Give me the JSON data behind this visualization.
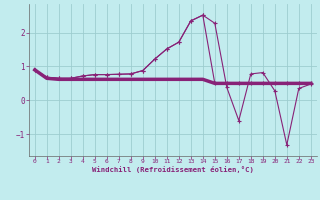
{
  "xlabel": "Windchill (Refroidissement éolien,°C)",
  "background_color": "#c2ecee",
  "grid_color": "#9dcdd0",
  "line_color": "#882277",
  "x": [
    0,
    1,
    2,
    3,
    4,
    5,
    6,
    7,
    8,
    9,
    10,
    11,
    12,
    13,
    14,
    15,
    16,
    17,
    18,
    19,
    20,
    21,
    22,
    23
  ],
  "line1": [
    0.9,
    0.68,
    0.65,
    0.65,
    0.72,
    0.76,
    0.76,
    0.77,
    0.78,
    0.88,
    1.22,
    1.52,
    1.72,
    2.35,
    2.52,
    2.28,
    0.38,
    -0.6,
    0.78,
    0.82,
    0.28,
    -1.32,
    0.35,
    0.48
  ],
  "line2": [
    0.9,
    0.68,
    0.65,
    0.65,
    0.72,
    0.76,
    0.76,
    0.77,
    0.78,
    0.88,
    1.22,
    1.52,
    1.72,
    2.35,
    2.52,
    0.5,
    0.5,
    0.5,
    0.5,
    0.5,
    0.5,
    0.5,
    0.5,
    0.5
  ],
  "line3": [
    0.9,
    0.65,
    0.62,
    0.62,
    0.62,
    0.62,
    0.62,
    0.62,
    0.62,
    0.62,
    0.62,
    0.62,
    0.62,
    0.62,
    0.62,
    0.5,
    0.5,
    0.5,
    0.5,
    0.5,
    0.5,
    0.5,
    0.5,
    0.5
  ],
  "ylim": [
    -1.65,
    2.85
  ],
  "xlim": [
    -0.5,
    23.5
  ],
  "yticks": [
    -1,
    0,
    1,
    2
  ],
  "xticks": [
    0,
    1,
    2,
    3,
    4,
    5,
    6,
    7,
    8,
    9,
    10,
    11,
    12,
    13,
    14,
    15,
    16,
    17,
    18,
    19,
    20,
    21,
    22,
    23
  ]
}
